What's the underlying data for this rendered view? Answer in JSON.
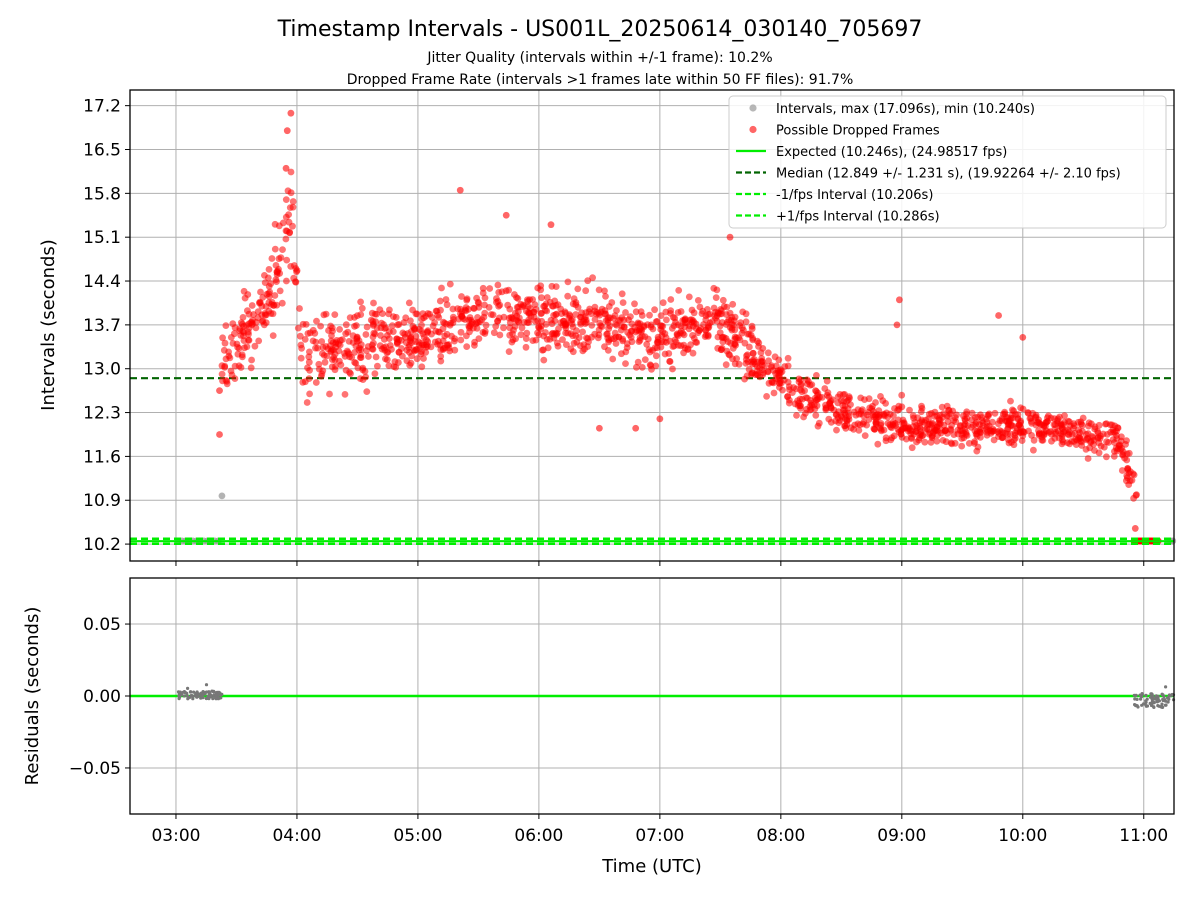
{
  "chart_data": {
    "type": "scatter",
    "title": "Timestamp Intervals - US001L_20250614_030140_705697",
    "subtitle_lines": [
      "Jitter Quality (intervals within +/-1 frame): 10.2%",
      "Dropped Frame Rate (intervals >1 frames late within 50 FF files): 91.7%"
    ],
    "xlabel": "Time (UTC)",
    "x_ticks": [
      "03:00",
      "04:00",
      "05:00",
      "06:00",
      "07:00",
      "08:00",
      "09:00",
      "10:00",
      "11:00"
    ],
    "xlim_hours": [
      2.62,
      11.25
    ],
    "grid": true,
    "legend_position": "upper right",
    "colors": {
      "intervals": "#999999",
      "dropped": "#ff0000",
      "expected": "#00ee00",
      "median": "#006400",
      "fps_interval": "#00ee00",
      "residual": "#777777"
    },
    "panels": [
      {
        "ylabel": "Intervals (seconds)",
        "ylim": [
          9.93,
          17.45
        ],
        "y_ticks": [
          "10.2",
          "10.9",
          "11.6",
          "12.3",
          "13.0",
          "13.7",
          "14.4",
          "15.1",
          "15.8",
          "16.5",
          "17.2"
        ],
        "legend": [
          "Intervals, max (17.096s), min (10.240s)",
          "Possible Dropped Frames",
          "Expected (10.246s), (24.98517 fps)",
          "Median (12.849 +/- 1.231 s), (19.92264 +/- 2.10 fps)",
          "-1/fps Interval (10.206s)",
          "+1/fps Interval (10.286s)"
        ],
        "reference_lines": {
          "expected": 10.246,
          "median": 12.849,
          "minus_fps": 10.206,
          "plus_fps": 10.286
        },
        "normal_intervals": {
          "x_hours": [
            3.02,
            3.05,
            3.08,
            3.11,
            3.14,
            3.17,
            3.2,
            3.23,
            3.26,
            3.29,
            3.32,
            3.35,
            3.38,
            11.2,
            11.22,
            11.24
          ],
          "y": [
            10.25,
            10.25,
            10.25,
            10.25,
            10.25,
            10.25,
            10.25,
            10.25,
            10.25,
            10.25,
            10.25,
            10.25,
            10.97,
            10.25,
            10.25,
            10.25
          ]
        },
        "dropped_trend": {
          "x_hours": [
            3.38,
            3.6,
            3.8,
            3.95,
            4.05,
            4.5,
            5.0,
            5.5,
            6.0,
            6.5,
            7.0,
            7.5,
            7.7,
            7.9,
            8.2,
            8.5,
            9.0,
            9.5,
            10.0,
            10.5,
            10.8,
            10.88,
            10.95
          ],
          "y": [
            13.2,
            13.6,
            14.2,
            15.5,
            13.2,
            13.4,
            13.5,
            13.9,
            13.8,
            13.7,
            13.5,
            13.8,
            13.4,
            12.95,
            12.55,
            12.35,
            12.1,
            12.05,
            12.1,
            11.95,
            11.85,
            11.3,
            10.8
          ]
        },
        "dropped_spread": [
          0.55,
          0.55,
          0.6,
          0.7,
          0.6,
          0.55,
          0.5,
          0.5,
          0.5,
          0.5,
          0.45,
          0.5,
          0.45,
          0.4,
          0.35,
          0.35,
          0.3,
          0.3,
          0.3,
          0.3,
          0.3,
          0.35,
          0.35
        ],
        "dropped_count": 1800,
        "dropped_outliers": {
          "x_hours": [
            3.36,
            3.36,
            3.95,
            3.92,
            3.91,
            5.35,
            5.73,
            6.1,
            6.5,
            6.8,
            7.0,
            7.58,
            8.98,
            8.96,
            9.8,
            10.0,
            10.93,
            10.92
          ],
          "y": [
            11.95,
            12.65,
            17.08,
            16.8,
            16.2,
            15.85,
            15.45,
            15.3,
            12.05,
            12.05,
            12.2,
            15.1,
            14.1,
            13.7,
            13.85,
            13.5,
            10.45,
            10.25
          ]
        },
        "dropped_floor": {
          "x_start_hours": 10.92,
          "x_end_hours": 11.12,
          "y": 10.25
        }
      },
      {
        "ylabel": "Residuals (seconds)",
        "ylim": [
          -0.082,
          0.082
        ],
        "y_ticks": [
          "0.05",
          "0.00",
          "−0.05"
        ],
        "zero_line": 0.0,
        "residual_clusters": [
          {
            "x_start_hours": 3.02,
            "x_end_hours": 3.38,
            "y_min": -0.002,
            "y_max": 0.008
          },
          {
            "x_start_hours": 10.92,
            "x_end_hours": 11.25,
            "y_min": -0.008,
            "y_max": 0.01
          }
        ]
      }
    ]
  }
}
